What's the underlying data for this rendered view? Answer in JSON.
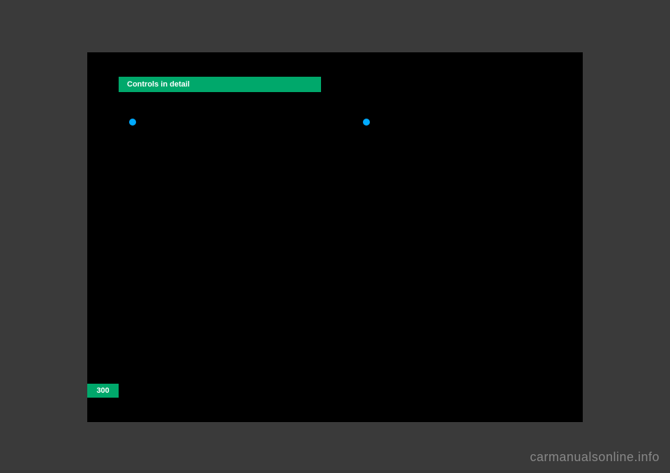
{
  "header": {
    "title": "Controls in detail",
    "bg_color": "#00a86b",
    "text_color": "#ffffff"
  },
  "bullets": {
    "color": "#00aaff",
    "count": 2
  },
  "page_number": {
    "value": "300",
    "bg_color": "#00a86b",
    "text_color": "#ffffff"
  },
  "watermark": {
    "text": "carmanualsonline.info",
    "color": "#888888"
  },
  "page_bg": "#000000",
  "body_bg": "#3a3a3a"
}
